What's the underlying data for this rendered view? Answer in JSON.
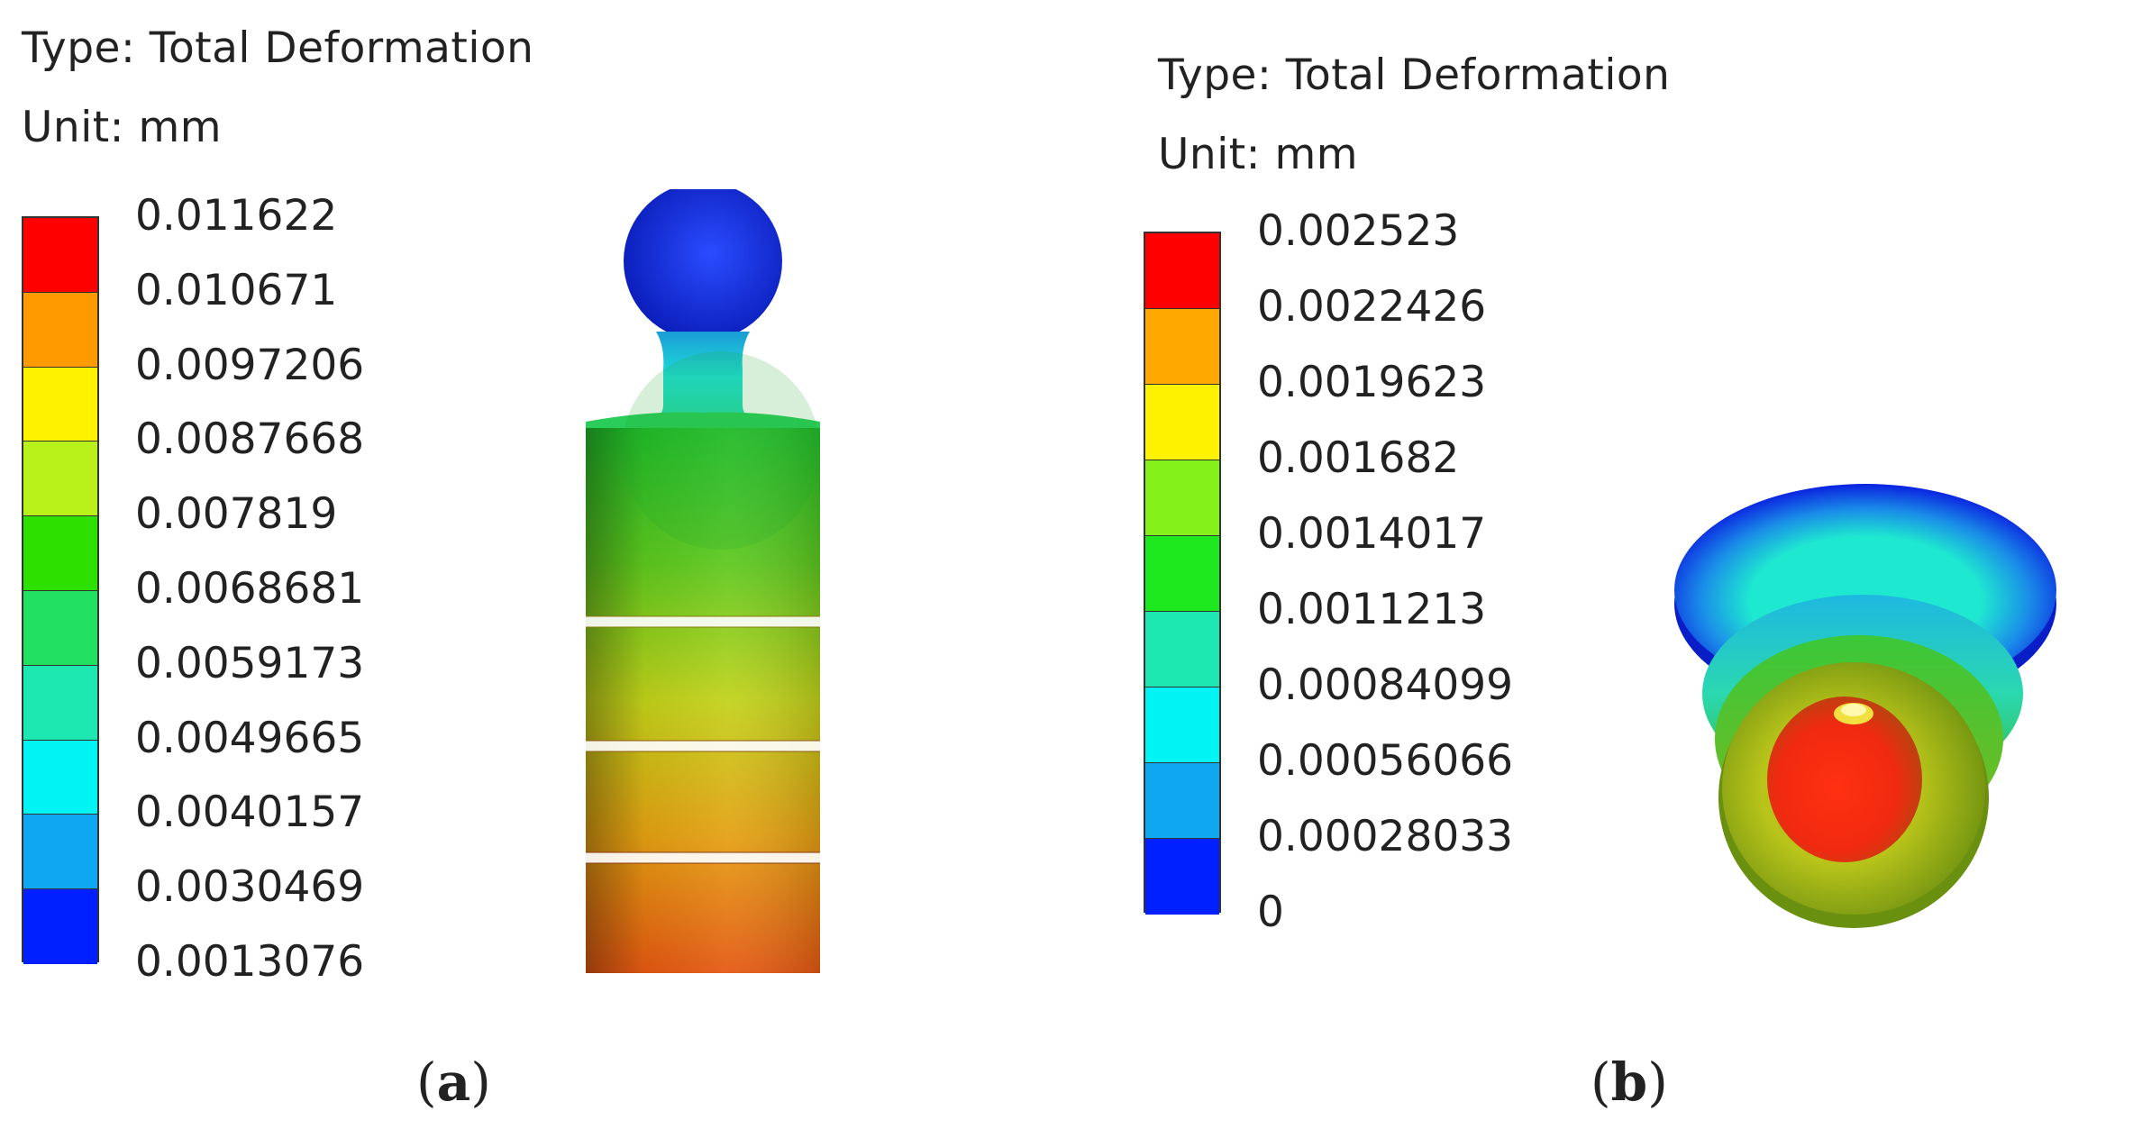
{
  "panels": [
    {
      "legend": {
        "type_label": "Type: Total Deformation",
        "unit_label": "Unit: mm",
        "ticks": [
          "0.011622",
          "0.010671",
          "0.0097206",
          "0.0087668",
          "0.007819",
          "0.0068681",
          "0.0059173",
          "0.0049665",
          "0.0040157",
          "0.0030469",
          "0.0013076"
        ],
        "band_colors": [
          "#ff0000",
          "#ff9a00",
          "#fff200",
          "#b8f21a",
          "#2ee000",
          "#22e060",
          "#1ee8b2",
          "#00f4f4",
          "#0fa6f2",
          "#0020ff"
        ]
      },
      "caption": "a"
    },
    {
      "legend": {
        "type_label": "Type: Total Deformation",
        "unit_label": "Unit: mm",
        "ticks": [
          "0.002523",
          "0.0022426",
          "0.0019623",
          "0.001682",
          "0.0014017",
          "0.0011213",
          "0.00084099",
          "0.00056066",
          "0.00028033",
          "0"
        ],
        "band_colors": [
          "#ff0000",
          "#ffa800",
          "#fff200",
          "#84f21a",
          "#1ee81e",
          "#1ee8b2",
          "#00f4f4",
          "#0fa6f2",
          "#0020ff"
        ]
      },
      "caption": "b"
    }
  ]
}
